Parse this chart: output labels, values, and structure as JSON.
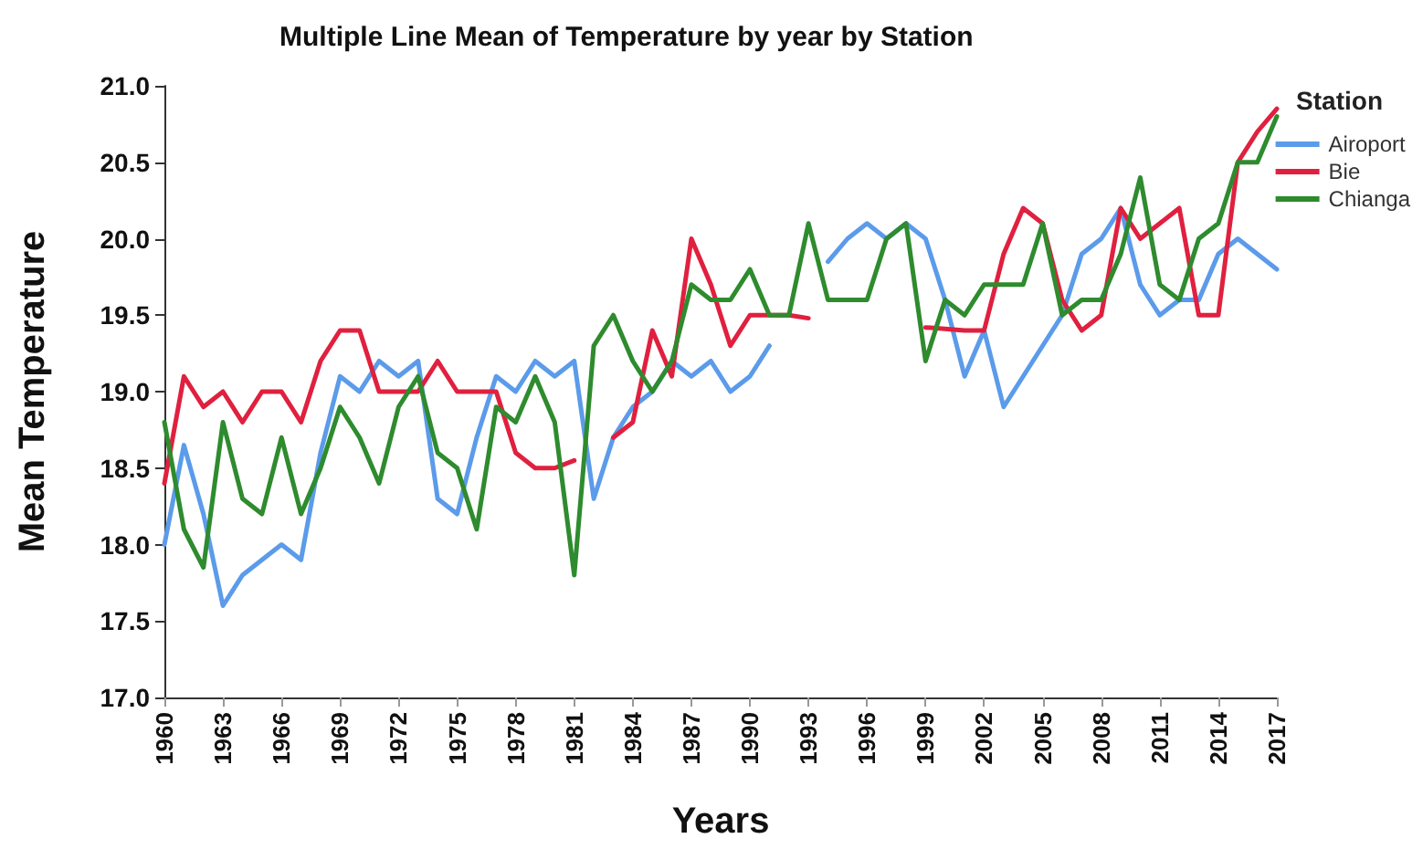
{
  "chart_data": {
    "type": "line",
    "title": "Multiple Line Mean of Temperature by year by Station",
    "xlabel": "Years",
    "ylabel": "Mean Temperature",
    "legend_title": "Station",
    "categories": [
      "1960",
      null,
      null,
      "1963",
      null,
      null,
      "1966",
      null,
      null,
      "1969",
      null,
      null,
      "1972",
      null,
      null,
      "1975",
      null,
      null,
      "1978",
      null,
      null,
      "1981",
      null,
      null,
      "1984",
      null,
      null,
      "1987",
      null,
      null,
      "1990",
      null,
      null,
      "1993",
      null,
      null,
      "1996",
      null,
      null,
      "1999",
      null,
      null,
      "2002",
      null,
      null,
      "2005",
      null,
      null,
      "2008",
      null,
      null,
      "2011",
      null,
      null,
      "2014",
      null,
      null,
      "2017"
    ],
    "series": [
      {
        "name": "Airoport",
        "color": "#5b9bea",
        "values": [
          18.0,
          18.65,
          18.2,
          17.6,
          17.8,
          17.9,
          18.0,
          17.9,
          18.6,
          19.1,
          19.0,
          19.2,
          19.1,
          19.2,
          18.3,
          18.2,
          18.7,
          19.1,
          19.0,
          19.2,
          19.1,
          19.2,
          18.3,
          18.7,
          18.9,
          19.0,
          19.2,
          19.1,
          19.2,
          19.0,
          19.1,
          19.3,
          null,
          null,
          19.85,
          20.0,
          20.1,
          20.0,
          20.1,
          20.0,
          19.6,
          19.1,
          19.4,
          18.9,
          19.1,
          19.3,
          19.5,
          19.9,
          20.0,
          20.2,
          19.7,
          19.5,
          19.6,
          19.6,
          19.9,
          20.0,
          19.9,
          19.8
        ]
      },
      {
        "name": "Bie",
        "color": "#e0203f",
        "values": [
          18.4,
          19.1,
          18.9,
          19.0,
          18.8,
          19.0,
          19.0,
          18.8,
          19.2,
          19.4,
          19.4,
          19.0,
          19.0,
          19.0,
          19.2,
          19.0,
          19.0,
          19.0,
          18.6,
          18.5,
          18.5,
          18.55,
          null,
          18.7,
          18.8,
          19.4,
          19.1,
          20.0,
          19.7,
          19.3,
          19.5,
          19.5,
          19.5,
          19.48,
          null,
          null,
          null,
          null,
          null,
          19.42,
          19.41,
          19.4,
          19.4,
          19.9,
          20.2,
          20.1,
          19.6,
          19.4,
          19.5,
          20.2,
          20.0,
          20.1,
          20.2,
          19.5,
          19.5,
          20.5,
          20.7,
          20.85
        ]
      },
      {
        "name": "Chianga",
        "color": "#2e8b2e",
        "values": [
          18.8,
          18.1,
          17.85,
          18.8,
          18.3,
          18.2,
          18.7,
          18.2,
          18.5,
          18.9,
          18.7,
          18.4,
          18.9,
          19.1,
          18.6,
          18.5,
          18.1,
          18.9,
          18.8,
          19.1,
          18.8,
          17.8,
          19.3,
          19.5,
          19.2,
          19.0,
          19.2,
          19.7,
          19.6,
          19.6,
          19.8,
          19.5,
          19.5,
          20.1,
          19.6,
          19.6,
          19.6,
          20.0,
          20.1,
          19.2,
          19.6,
          19.5,
          19.7,
          19.7,
          19.7,
          20.1,
          19.5,
          19.6,
          19.6,
          19.9,
          20.4,
          19.7,
          19.6,
          20.0,
          20.1,
          20.5,
          20.5,
          20.8
        ]
      }
    ],
    "ylim": [
      17.0,
      21.0
    ],
    "yticks": [
      {
        "value": 17,
        "label": "17.0"
      },
      {
        "value": 17.5,
        "label": "17.5"
      },
      {
        "value": 18,
        "label": "18.0"
      },
      {
        "value": 18.5,
        "label": "18.5"
      },
      {
        "value": 19,
        "label": "19.0"
      },
      {
        "value": 19.5,
        "label": "19.5"
      },
      {
        "value": 20,
        "label": "20.0"
      },
      {
        "value": 20.5,
        "label": "20.5"
      },
      {
        "value": 21,
        "label": "21.0"
      }
    ],
    "grid": false,
    "legend": "top right",
    "marker": "none",
    "line_style": "solid"
  }
}
